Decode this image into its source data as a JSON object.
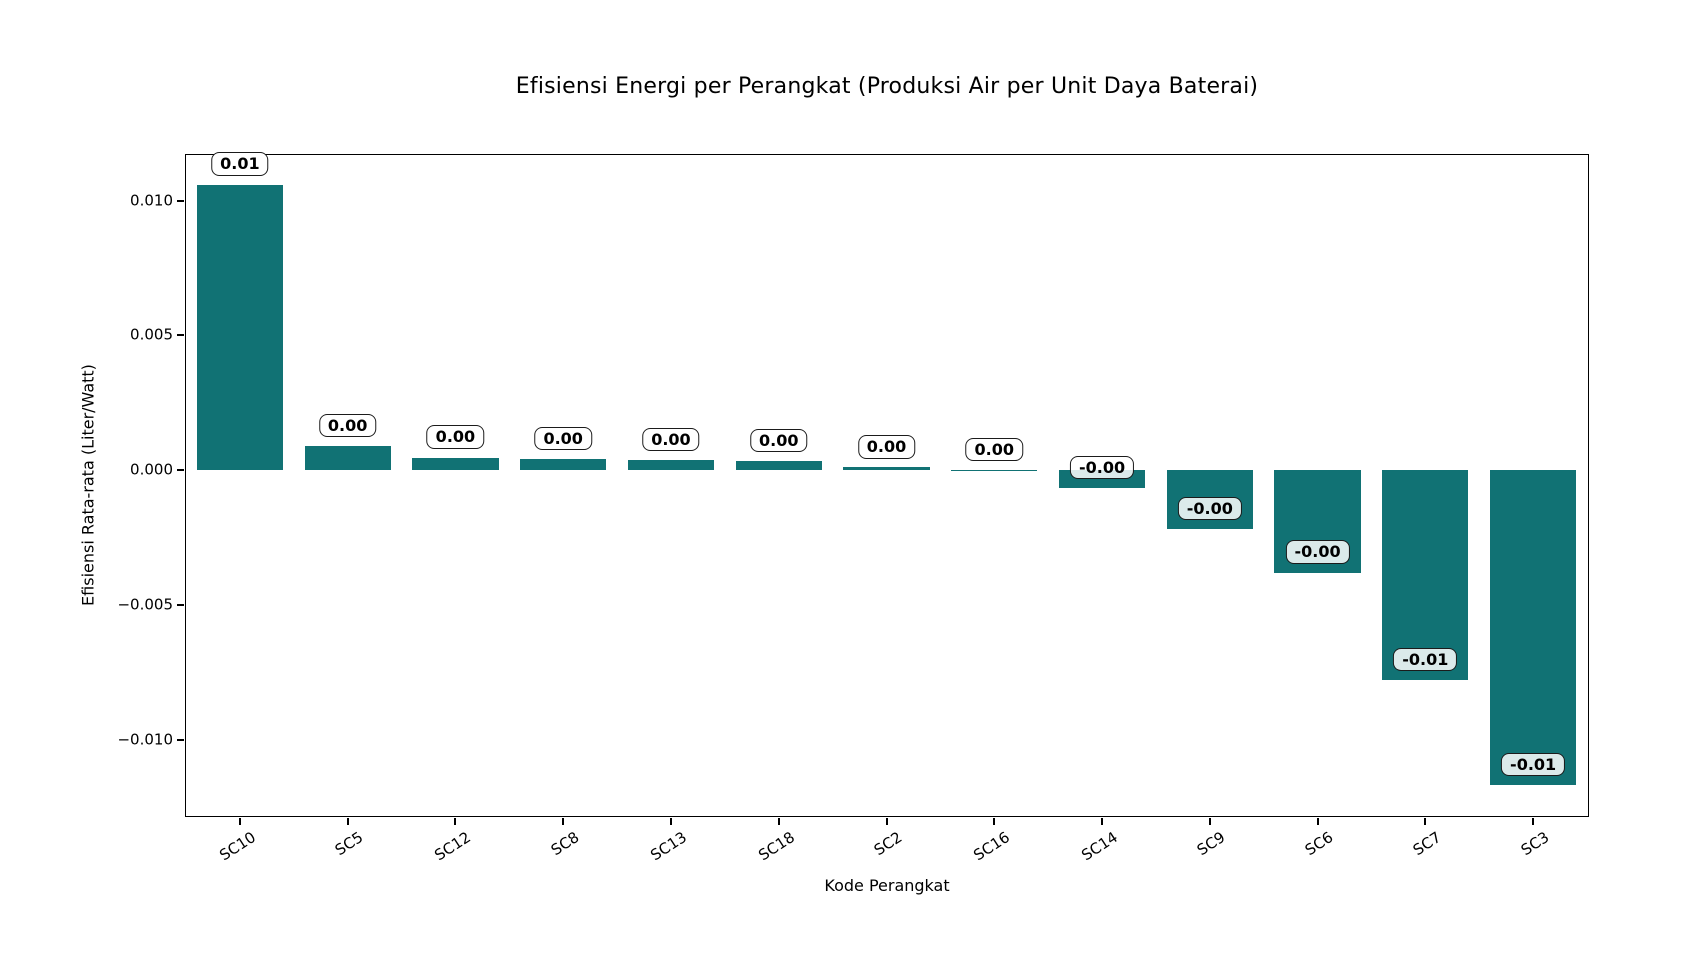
{
  "chart_data": {
    "type": "bar",
    "title": "Efisiensi Energi per Perangkat (Produksi Air per Unit Daya Baterai)",
    "xlabel": "Kode Perangkat",
    "ylabel": "Efisiensi Rata-rata (Liter/Watt)",
    "categories": [
      "SC10",
      "SC5",
      "SC12",
      "SC8",
      "SC13",
      "SC18",
      "SC2",
      "SC16",
      "SC14",
      "SC9",
      "SC6",
      "SC7",
      "SC3"
    ],
    "values": [
      0.0106,
      0.0009,
      0.00047,
      0.00042,
      0.00039,
      0.00035,
      0.0001,
      1e-05,
      -0.00065,
      -0.0022,
      -0.0038,
      -0.0078,
      -0.0117
    ],
    "bar_labels": [
      "0.01",
      "0.00",
      "0.00",
      "0.00",
      "0.00",
      "0.00",
      "0.00",
      "0.00",
      "-0.00",
      "-0.00",
      "-0.00",
      "-0.01",
      "-0.01"
    ],
    "yticks": [
      0.01,
      0.005,
      0.0,
      -0.005,
      -0.01
    ],
    "ytick_labels": [
      "0.010",
      "0.005",
      "0.000",
      "−0.005",
      "−0.010"
    ],
    "ylim": [
      -0.0128,
      0.0117
    ],
    "bar_color": "#117274",
    "spine_color": "#000000",
    "grid": false,
    "legend_position": "none"
  }
}
